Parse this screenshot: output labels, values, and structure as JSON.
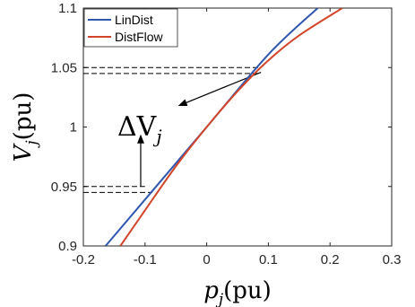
{
  "chart_data": {
    "type": "line",
    "xlabel_base": "p",
    "xlabel_sub": "j",
    "xlabel_unit": "(pu)",
    "ylabel_base": "V",
    "ylabel_sub": "j",
    "ylabel_unit": "(pu)",
    "xlim": [
      -0.2,
      0.3
    ],
    "ylim": [
      0.9,
      1.1
    ],
    "xticks": [
      -0.2,
      -0.1,
      0,
      0.1,
      0.2,
      0.3
    ],
    "xtick_labels": [
      "-0.2",
      "-0.1",
      "0",
      "0.1",
      "0.2",
      "0.3"
    ],
    "yticks": [
      0.9,
      0.95,
      1.0,
      1.05,
      1.1
    ],
    "ytick_labels": [
      "0.9",
      "0.95",
      "1",
      "1.05",
      "1.1"
    ],
    "grid": false,
    "legend_position": "top-left",
    "series": [
      {
        "name": "LinDist",
        "color": "#2f57b0",
        "x": [
          -0.164,
          -0.1,
          0,
          0.1,
          0.18
        ],
        "y": [
          0.9,
          0.939,
          1.0,
          1.061,
          1.1
        ]
      },
      {
        "name": "DistFlow",
        "color": "#d3452a",
        "x": [
          -0.14,
          -0.1,
          -0.05,
          0,
          0.05,
          0.1,
          0.15,
          0.22
        ],
        "y": [
          0.9,
          0.93,
          0.967,
          1.0,
          1.03,
          1.056,
          1.077,
          1.1
        ]
      }
    ],
    "annotations": {
      "delta_label_base": "ΔV",
      "delta_label_sub": "j",
      "dashed_reference_lines": [
        {
          "y": 1.05,
          "x_end": 0.087
        },
        {
          "y": 1.045,
          "x_end": 0.087
        },
        {
          "y": 0.95,
          "x_end": -0.1
        },
        {
          "y": 0.945,
          "x_end": -0.088
        }
      ],
      "arrows": [
        {
          "from": [
            0.088,
            1.046
          ],
          "to": [
            -0.045,
            1.018
          ]
        },
        {
          "from": [
            -0.107,
            0.95
          ],
          "to": [
            -0.107,
            0.993
          ]
        }
      ]
    }
  }
}
